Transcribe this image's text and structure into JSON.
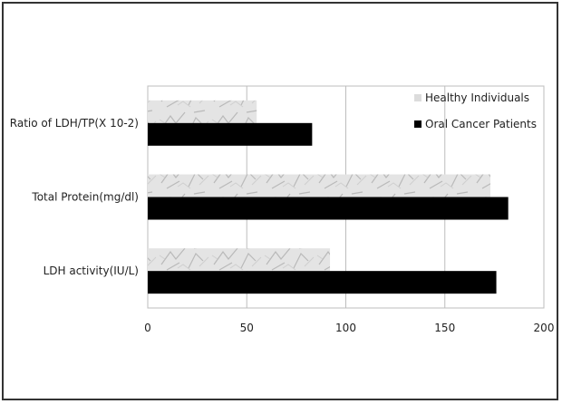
{
  "chart_data": {
    "type": "bar",
    "orientation": "horizontal",
    "categories": [
      "Ratio of LDH/TP(X 10-2)",
      "Total Protein(mg/dl)",
      "LDH activity(IU/L)"
    ],
    "series": [
      {
        "name": "Healthy Individuals",
        "values": [
          55,
          173,
          92
        ],
        "color": "#d8d8d8",
        "pattern": "marble"
      },
      {
        "name": "Oral Cancer Patients",
        "values": [
          83,
          182,
          176
        ],
        "color": "#000000"
      }
    ],
    "xlim": [
      0,
      200
    ],
    "xticks": [
      0,
      50,
      100,
      150,
      200
    ],
    "grid": "vertical",
    "legend_position": "top-right",
    "title": "",
    "xlabel": "",
    "ylabel": ""
  }
}
